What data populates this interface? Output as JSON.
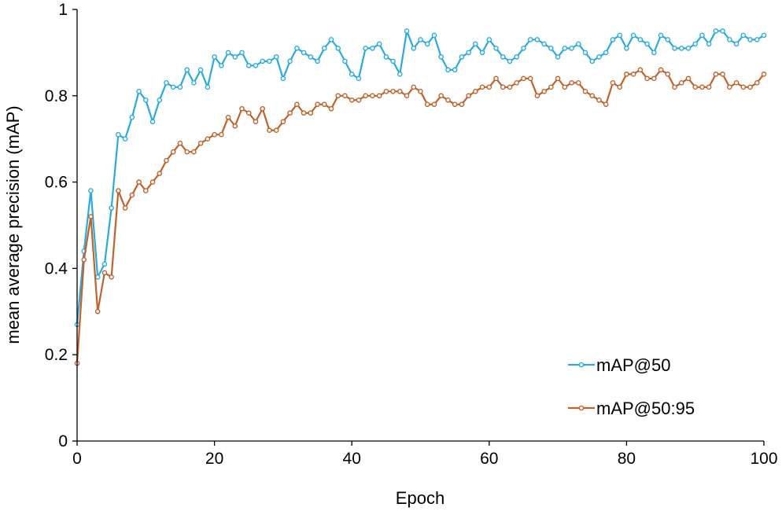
{
  "chart_data": {
    "type": "line",
    "xlabel": "Epoch",
    "ylabel": "mean average precision (mAP)",
    "xlim": [
      0,
      100
    ],
    "ylim": [
      0,
      1
    ],
    "x_ticks": [
      0,
      20,
      40,
      60,
      80,
      100
    ],
    "y_ticks": [
      0,
      0.2,
      0.4,
      0.6,
      0.8,
      1
    ],
    "y_tick_labels": [
      "0",
      "0.2",
      "0.4",
      "0.6",
      "0.8",
      "1"
    ],
    "grid": false,
    "legend_position": "bottom-right",
    "x": [
      0,
      1,
      2,
      3,
      4,
      5,
      6,
      7,
      8,
      9,
      10,
      11,
      12,
      13,
      14,
      15,
      16,
      17,
      18,
      19,
      20,
      21,
      22,
      23,
      24,
      25,
      26,
      27,
      28,
      29,
      30,
      31,
      32,
      33,
      34,
      35,
      36,
      37,
      38,
      39,
      40,
      41,
      42,
      43,
      44,
      45,
      46,
      47,
      48,
      49,
      50,
      51,
      52,
      53,
      54,
      55,
      56,
      57,
      58,
      59,
      60,
      61,
      62,
      63,
      64,
      65,
      66,
      67,
      68,
      69,
      70,
      71,
      72,
      73,
      74,
      75,
      76,
      77,
      78,
      79,
      80,
      81,
      82,
      83,
      84,
      85,
      86,
      87,
      88,
      89,
      90,
      91,
      92,
      93,
      94,
      95,
      96,
      97,
      98,
      99,
      100
    ],
    "series": [
      {
        "name": "mAP@50",
        "color": "#29abe2",
        "values": [
          0.27,
          0.44,
          0.58,
          0.38,
          0.41,
          0.54,
          0.71,
          0.7,
          0.75,
          0.81,
          0.79,
          0.74,
          0.79,
          0.83,
          0.82,
          0.82,
          0.86,
          0.83,
          0.86,
          0.82,
          0.89,
          0.87,
          0.9,
          0.89,
          0.9,
          0.87,
          0.87,
          0.88,
          0.88,
          0.89,
          0.84,
          0.88,
          0.91,
          0.9,
          0.89,
          0.88,
          0.91,
          0.93,
          0.91,
          0.88,
          0.85,
          0.84,
          0.91,
          0.91,
          0.92,
          0.89,
          0.88,
          0.85,
          0.95,
          0.91,
          0.93,
          0.92,
          0.94,
          0.89,
          0.86,
          0.86,
          0.89,
          0.9,
          0.92,
          0.9,
          0.93,
          0.91,
          0.89,
          0.88,
          0.89,
          0.91,
          0.93,
          0.93,
          0.92,
          0.91,
          0.89,
          0.91,
          0.91,
          0.92,
          0.9,
          0.88,
          0.89,
          0.9,
          0.93,
          0.94,
          0.91,
          0.94,
          0.93,
          0.92,
          0.9,
          0.94,
          0.93,
          0.91,
          0.91,
          0.91,
          0.92,
          0.94,
          0.92,
          0.95,
          0.95,
          0.93,
          0.92,
          0.94,
          0.93,
          0.93,
          0.94
        ]
      },
      {
        "name": "mAP@50:95",
        "color": "#c0622b",
        "values": [
          0.18,
          0.42,
          0.52,
          0.3,
          0.39,
          0.38,
          0.58,
          0.54,
          0.57,
          0.6,
          0.58,
          0.6,
          0.62,
          0.65,
          0.67,
          0.69,
          0.67,
          0.67,
          0.69,
          0.7,
          0.71,
          0.71,
          0.75,
          0.73,
          0.77,
          0.76,
          0.74,
          0.77,
          0.72,
          0.72,
          0.74,
          0.76,
          0.78,
          0.76,
          0.76,
          0.78,
          0.78,
          0.77,
          0.8,
          0.8,
          0.79,
          0.79,
          0.8,
          0.8,
          0.8,
          0.81,
          0.81,
          0.81,
          0.8,
          0.82,
          0.81,
          0.78,
          0.78,
          0.8,
          0.79,
          0.78,
          0.78,
          0.8,
          0.81,
          0.82,
          0.82,
          0.84,
          0.82,
          0.82,
          0.83,
          0.84,
          0.84,
          0.8,
          0.81,
          0.82,
          0.84,
          0.82,
          0.83,
          0.83,
          0.81,
          0.8,
          0.79,
          0.78,
          0.83,
          0.82,
          0.85,
          0.85,
          0.86,
          0.84,
          0.84,
          0.86,
          0.85,
          0.82,
          0.83,
          0.84,
          0.82,
          0.82,
          0.82,
          0.85,
          0.85,
          0.82,
          0.83,
          0.82,
          0.82,
          0.83,
          0.85
        ]
      }
    ]
  }
}
